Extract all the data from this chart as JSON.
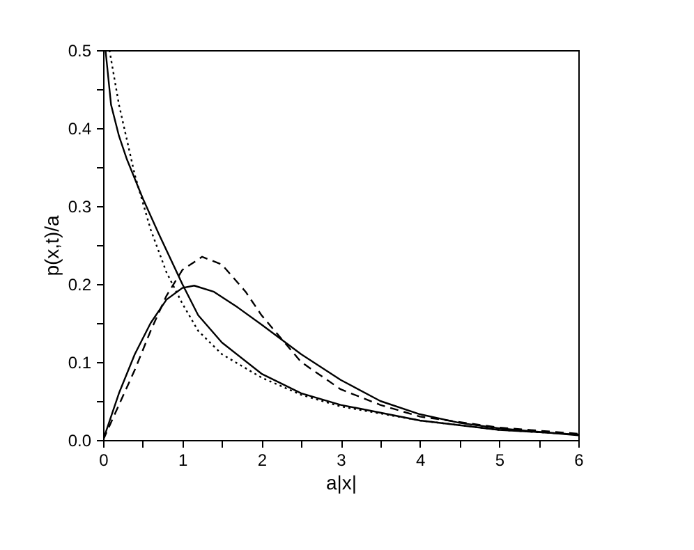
{
  "chart_data": {
    "type": "line",
    "xlabel": "a|x|",
    "ylabel": "p(x,t)/a",
    "xlim": [
      0,
      6
    ],
    "ylim": [
      0,
      0.5
    ],
    "xticks": [
      0,
      {
        "value": 0.5,
        "label": null
      },
      1,
      {
        "value": 1.5,
        "label": null
      },
      2,
      {
        "value": 2.5,
        "label": null
      },
      3,
      {
        "value": 3.5,
        "label": null
      },
      4,
      {
        "value": 4.5,
        "label": null
      },
      5,
      {
        "value": 5.5,
        "label": null
      },
      6
    ],
    "yticks": [
      {
        "value": 0,
        "label": "0.0"
      },
      {
        "value": 0.05,
        "label": null
      },
      0.1,
      {
        "value": 0.15,
        "label": null
      },
      0.2,
      {
        "value": 0.25,
        "label": null
      },
      0.3,
      {
        "value": 0.35,
        "label": null
      },
      0.4,
      {
        "value": 0.45,
        "label": null
      },
      0.5
    ],
    "grid": false,
    "series": [
      {
        "color": "#000000",
        "line_style": "solid",
        "x": [
          0.03,
          0.1,
          0.2,
          0.3,
          0.5,
          0.7,
          1.0,
          1.2,
          1.5,
          2.0,
          2.5,
          3.0,
          3.5,
          4.0,
          5.0,
          6.0
        ],
        "values": [
          0.5,
          0.43,
          0.39,
          0.36,
          0.31,
          0.265,
          0.2,
          0.16,
          0.125,
          0.085,
          0.06,
          0.045,
          0.035,
          0.025,
          0.013,
          0.007
        ]
      },
      {
        "color": "#000000",
        "line_style": "dotted",
        "x": [
          0.08,
          0.2,
          0.4,
          0.6,
          0.8,
          1.0,
          1.2,
          1.5,
          2.0,
          2.5,
          3.0,
          4.0,
          5.0,
          6.0
        ],
        "values": [
          0.5,
          0.43,
          0.34,
          0.27,
          0.215,
          0.175,
          0.14,
          0.11,
          0.08,
          0.058,
          0.043,
          0.025,
          0.013,
          0.007
        ]
      },
      {
        "color": "#000000",
        "line_style": "solid",
        "x": [
          0,
          0.2,
          0.4,
          0.6,
          0.8,
          1.0,
          1.15,
          1.4,
          1.7,
          2.0,
          2.5,
          3.0,
          3.5,
          4.0,
          4.5,
          5.0,
          6.0
        ],
        "values": [
          0,
          0.06,
          0.11,
          0.15,
          0.18,
          0.195,
          0.198,
          0.19,
          0.17,
          0.148,
          0.11,
          0.077,
          0.05,
          0.033,
          0.022,
          0.015,
          0.006
        ]
      },
      {
        "color": "#000000",
        "line_style": "dashed",
        "x": [
          0,
          0.2,
          0.4,
          0.6,
          0.8,
          1.0,
          1.25,
          1.5,
          1.8,
          2.0,
          2.5,
          3.0,
          3.5,
          4.0,
          5.0,
          6.0
        ],
        "values": [
          0,
          0.045,
          0.09,
          0.14,
          0.185,
          0.218,
          0.235,
          0.225,
          0.19,
          0.16,
          0.1,
          0.065,
          0.045,
          0.03,
          0.016,
          0.008
        ]
      }
    ]
  }
}
